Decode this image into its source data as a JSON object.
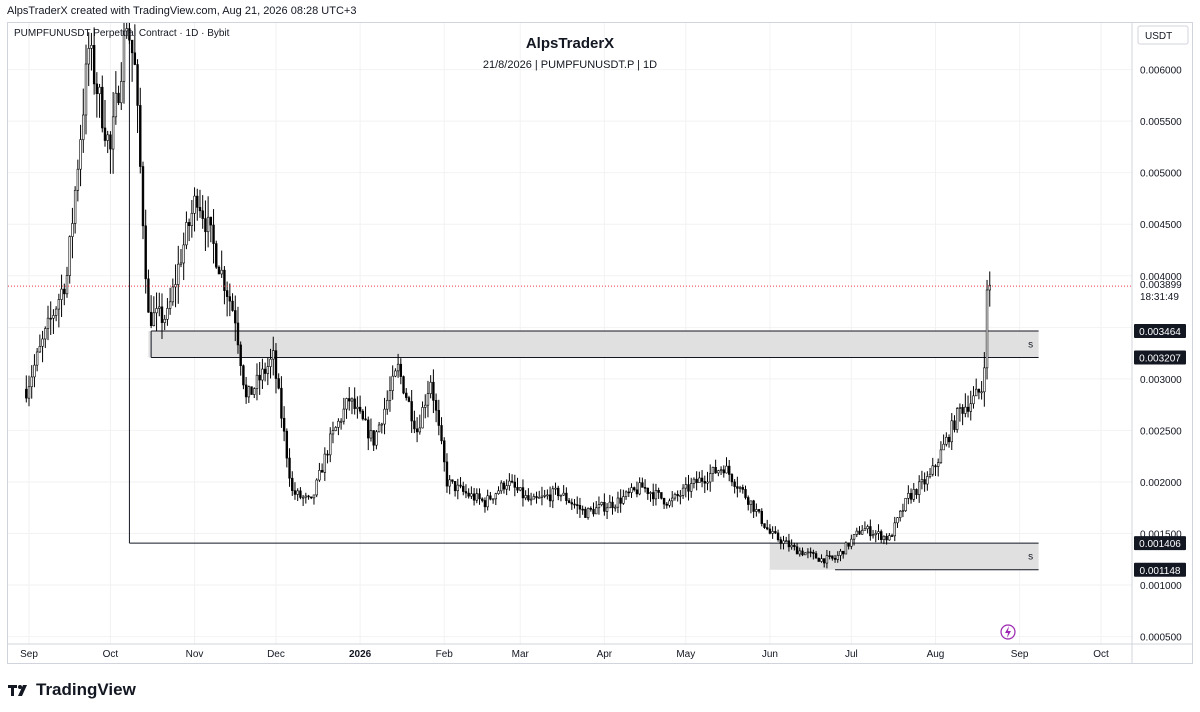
{
  "header": {
    "text": "AlpsTraderX created with TradingView.com, Aug 21, 2026 08:28 UTC+3"
  },
  "legend": {
    "symbol_line": "PUMPFUNUSDT Perpetual Contract · 1D · Bybit"
  },
  "watermark": {
    "title": "AlpsTraderX",
    "subtitle": "21/8/2026 | PUMPFUNUSDT.P | 1D"
  },
  "footer": {
    "brand": "TradingView",
    "logo_icon": "tradingview-logo-icon"
  },
  "colors": {
    "candle": "#000000",
    "zone_fill": "#e0e0e0",
    "zone_border": "#9e9e9e",
    "price_line": "#f23645",
    "label_bg": "#131722",
    "label_text": "#ffffff",
    "grid": "#f2f2f2",
    "flash_icon": "#9c27b0"
  },
  "chart_data": {
    "type": "candlestick",
    "currency_label": "USDT",
    "grid": true,
    "y_range": [
      0.000428,
      0.006452
    ],
    "y_ticks": [
      {
        "value": 0.0005,
        "label": "0.000500"
      },
      {
        "value": 0.001,
        "label": "0.001000"
      },
      {
        "value": 0.0015,
        "label": "0.001500"
      },
      {
        "value": 0.002,
        "label": "0.002000"
      },
      {
        "value": 0.0025,
        "label": "0.002500"
      },
      {
        "value": 0.003,
        "label": "0.003000"
      },
      {
        "value": 0.0035,
        "label": "0.003500"
      },
      {
        "value": 0.004,
        "label": "0.004000"
      },
      {
        "value": 0.0045,
        "label": "0.004500"
      },
      {
        "value": 0.005,
        "label": "0.005000"
      },
      {
        "value": 0.0055,
        "label": "0.005500"
      },
      {
        "value": 0.006,
        "label": "0.006000"
      }
    ],
    "x_ticks": [
      {
        "date": "2025-09-01",
        "label": "Sep",
        "bold": false
      },
      {
        "date": "2025-10-01",
        "label": "Oct",
        "bold": false
      },
      {
        "date": "2025-11-01",
        "label": "Nov",
        "bold": false
      },
      {
        "date": "2025-12-01",
        "label": "Dec",
        "bold": false
      },
      {
        "date": "2026-01-01",
        "label": "2026",
        "bold": true
      },
      {
        "date": "2026-02-01",
        "label": "Feb",
        "bold": false
      },
      {
        "date": "2026-03-01",
        "label": "Mar",
        "bold": false
      },
      {
        "date": "2026-04-01",
        "label": "Apr",
        "bold": false
      },
      {
        "date": "2026-05-01",
        "label": "May",
        "bold": false
      },
      {
        "date": "2026-06-01",
        "label": "Jun",
        "bold": false
      },
      {
        "date": "2026-07-01",
        "label": "Jul",
        "bold": false
      },
      {
        "date": "2026-08-01",
        "label": "Aug",
        "bold": false
      },
      {
        "date": "2026-09-01",
        "label": "Sep",
        "bold": false
      },
      {
        "date": "2026-10-01",
        "label": "Oct",
        "bold": false
      }
    ],
    "current_price": {
      "value": 0.003899,
      "label": "0.003899",
      "countdown": "18:31:49"
    },
    "price_labels": [
      {
        "value": 0.003464,
        "label": "0.003464"
      },
      {
        "value": 0.003207,
        "label": "0.003207"
      },
      {
        "value": 0.001406,
        "label": "0.001406"
      },
      {
        "value": 0.001148,
        "label": "0.001148"
      }
    ],
    "zones": [
      {
        "from": "2025-10-15",
        "to": "2026-09-08",
        "top": 0.003464,
        "bottom": 0.003207,
        "label": "s"
      },
      {
        "from": "2026-06-01",
        "to": "2026-09-08",
        "top": 0.001406,
        "bottom": 0.001148,
        "label": "s"
      }
    ],
    "lines": [
      {
        "from": "2025-10-08",
        "to": "2026-09-08",
        "value": 0.001406
      },
      {
        "from": "2025-10-08",
        "to": "2025-10-08",
        "value_from": 0.006452,
        "value_to": 0.001406
      },
      {
        "from": "2025-10-16",
        "to": "2026-09-08",
        "value": 0.003464
      },
      {
        "from": "2025-10-16",
        "to": "2026-09-08",
        "value": 0.003207
      },
      {
        "from": "2025-10-16",
        "to": "2025-10-16",
        "value_from": 0.003464,
        "value_to": 0.003207
      },
      {
        "from": "2026-06-25",
        "to": "2026-09-08",
        "value": 0.001148
      }
    ],
    "series": [
      {
        "name": "PUMPFUNUSDT",
        "ohlc_anchor_dates": [
          "2025-08-31",
          "2025-09-08",
          "2025-09-15",
          "2025-09-23",
          "2025-10-01",
          "2025-10-07",
          "2025-10-10",
          "2025-10-15",
          "2025-10-22",
          "2025-10-27",
          "2025-11-02",
          "2025-11-09",
          "2025-11-16",
          "2025-11-20",
          "2025-11-30",
          "2025-12-07",
          "2025-12-14",
          "2025-12-21",
          "2025-12-28",
          "2026-01-06",
          "2026-01-15",
          "2026-01-22",
          "2026-01-27",
          "2026-02-02",
          "2026-02-08",
          "2026-02-16",
          "2026-02-24",
          "2026-03-05",
          "2026-03-15",
          "2026-03-25",
          "2026-04-05",
          "2026-04-15",
          "2026-04-25",
          "2026-05-05",
          "2026-05-15",
          "2026-05-25",
          "2026-06-01",
          "2026-06-10",
          "2026-06-20",
          "2026-06-25",
          "2026-07-05",
          "2026-07-15",
          "2026-07-22",
          "2026-07-30",
          "2026-08-05",
          "2026-08-10",
          "2026-08-15",
          "2026-08-18",
          "2026-08-19",
          "2026-08-20",
          "2026-08-21"
        ],
        "close_anchor_values": [
          0.0029,
          0.0035,
          0.004,
          0.0062,
          0.0052,
          0.0065,
          0.006,
          0.0036,
          0.0036,
          0.0042,
          0.0048,
          0.0042,
          0.0036,
          0.0028,
          0.0032,
          0.0019,
          0.0018,
          0.0024,
          0.0028,
          0.0024,
          0.0031,
          0.0025,
          0.003,
          0.002,
          0.0019,
          0.0018,
          0.002,
          0.0018,
          0.0019,
          0.0017,
          0.0018,
          0.00195,
          0.0018,
          0.002,
          0.00215,
          0.0018,
          0.0015,
          0.00135,
          0.00125,
          0.00125,
          0.00155,
          0.00145,
          0.00185,
          0.00205,
          0.0024,
          0.0027,
          0.0028,
          0.0029,
          0.0032,
          0.0038,
          0.0039
        ]
      }
    ]
  }
}
